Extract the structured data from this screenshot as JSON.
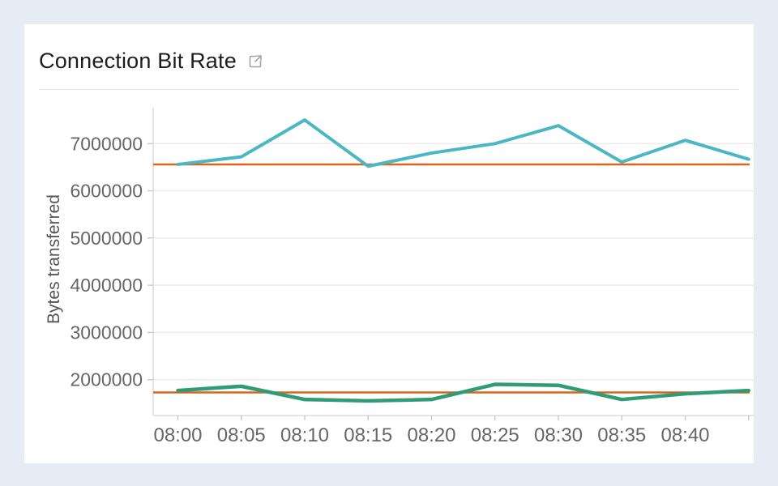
{
  "page": {
    "background_color": "#e7ebf4",
    "card_background": "#ffffff"
  },
  "header": {
    "title": "Connection Bit Rate",
    "icon": "external-link-icon",
    "icon_color": "#a3a3a3"
  },
  "colors": {
    "grid": "#ececec",
    "axis": "#dcdcdc",
    "tick": "#cccccc",
    "tick_label": "#666666",
    "axis_title": "#555555",
    "threshold": "#d9641a",
    "series_teal": "#4bb7c3",
    "series_green": "#2f9b77"
  },
  "chart_data": {
    "type": "line",
    "title": "Connection Bit Rate",
    "xlabel": "",
    "ylabel": "Bytes transferred",
    "grid": "horizontal",
    "legend": "none",
    "ylim": [
      1240000,
      7760000
    ],
    "y_ticks": [
      {
        "value": 2000000,
        "label": "2000000"
      },
      {
        "value": 3000000,
        "label": "3000000"
      },
      {
        "value": 4000000,
        "label": "4000000"
      },
      {
        "value": 5000000,
        "label": "5000000"
      },
      {
        "value": 6000000,
        "label": "6000000"
      },
      {
        "value": 7000000,
        "label": "7000000"
      }
    ],
    "x_ticks": [
      {
        "label": "08:00"
      },
      {
        "label": "08:05"
      },
      {
        "label": "08:10"
      },
      {
        "label": "08:15"
      },
      {
        "label": "08:20"
      },
      {
        "label": "08:25"
      },
      {
        "label": "08:30"
      },
      {
        "label": "08:35"
      },
      {
        "label": "08:40"
      },
      {
        "label": ""
      }
    ],
    "series": [
      {
        "name": "teal-series",
        "color": "#4bb7c3",
        "stroke_width": 4,
        "values": [
          6560000,
          6720000,
          7500000,
          6520000,
          6800000,
          7000000,
          7380000,
          6610000,
          7070000,
          6670000
        ]
      },
      {
        "name": "green-series",
        "color": "#2f9b77",
        "stroke_width": 4.5,
        "values": [
          1770000,
          1860000,
          1580000,
          1550000,
          1580000,
          1900000,
          1880000,
          1580000,
          1700000,
          1770000
        ]
      }
    ],
    "threshold_lines": [
      {
        "name": "upper-threshold",
        "value": 6560000,
        "color": "#d9641a"
      },
      {
        "name": "lower-threshold",
        "value": 1730000,
        "color": "#d9641a"
      }
    ]
  }
}
